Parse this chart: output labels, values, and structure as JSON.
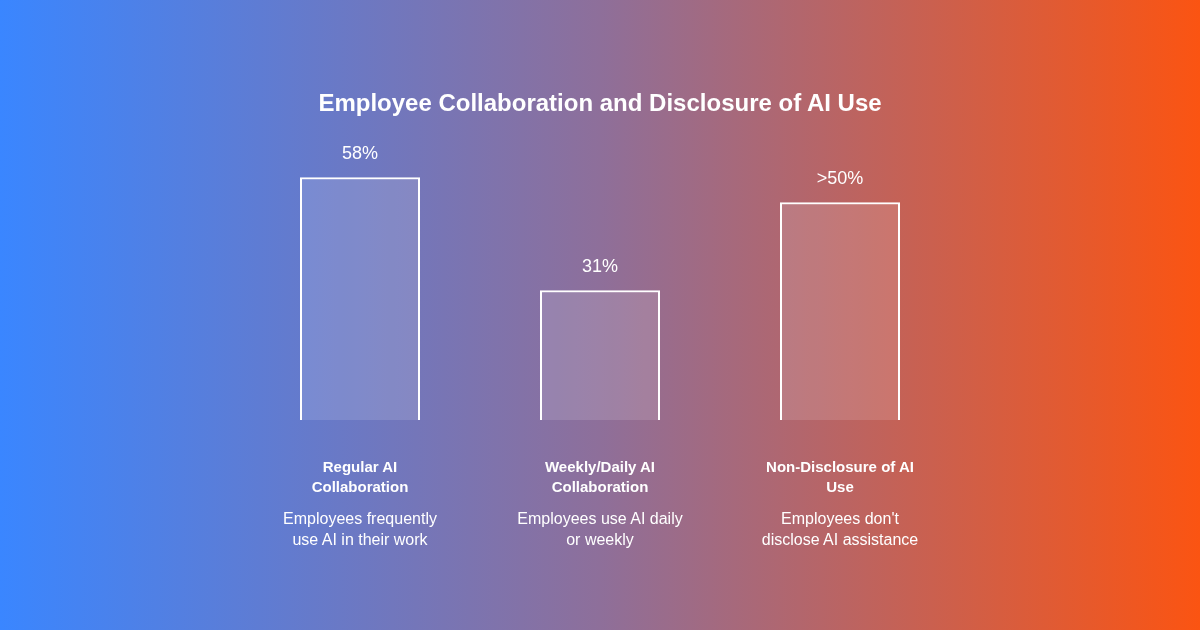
{
  "chart_data": {
    "type": "bar",
    "title": "Employee Collaboration and Disclosure of AI Use",
    "categories": [
      "Regular AI Collaboration",
      "Weekly/Daily AI Collaboration",
      "Non-Disclosure of AI Use"
    ],
    "values": [
      58,
      31,
      52
    ],
    "value_labels": [
      "58%",
      "31%",
      ">50%"
    ],
    "color": "#ffffff",
    "annotations": [
      "Employees frequently use AI in their work",
      "Employees use AI daily or weekly",
      "Employees don't disclose AI assistance"
    ],
    "legend": false
  }
}
